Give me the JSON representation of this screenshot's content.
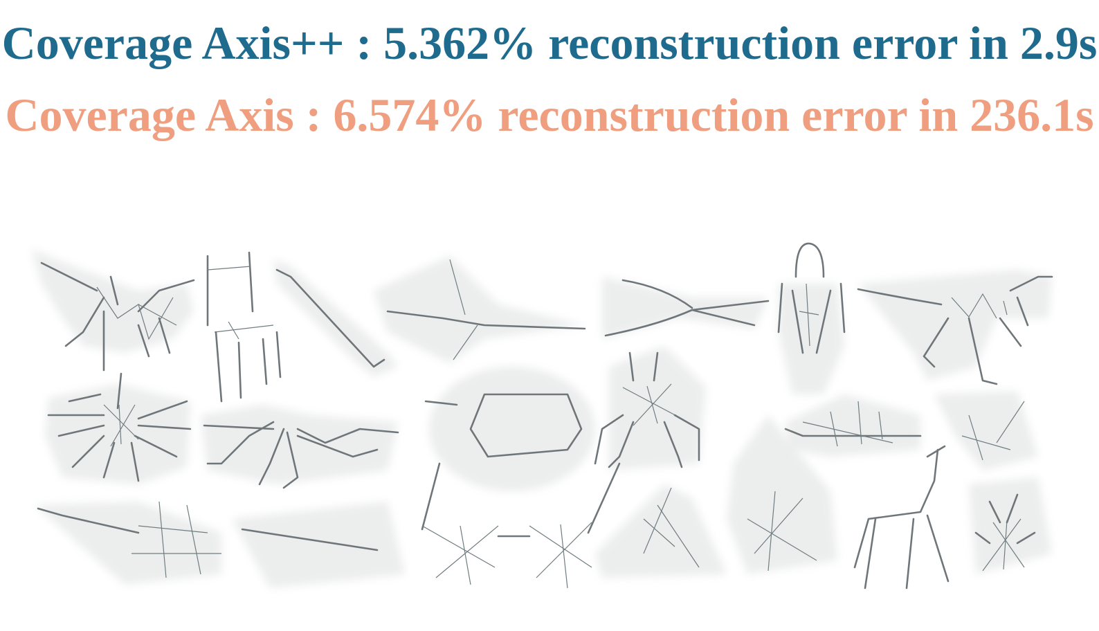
{
  "headline": {
    "primary": {
      "text": "Coverage Axis++ : 5.362% reconstruction error in 2.9s",
      "color": "#1f6b8e"
    },
    "secondary": {
      "text": "Coverage Axis : 6.574% reconstruction error in 236.1s",
      "color": "#ef9f7f"
    }
  },
  "figure": {
    "mesh_fill": "#c9e2e6",
    "edge_color": "#6f7679",
    "halo_color": "#e6e7e7"
  }
}
